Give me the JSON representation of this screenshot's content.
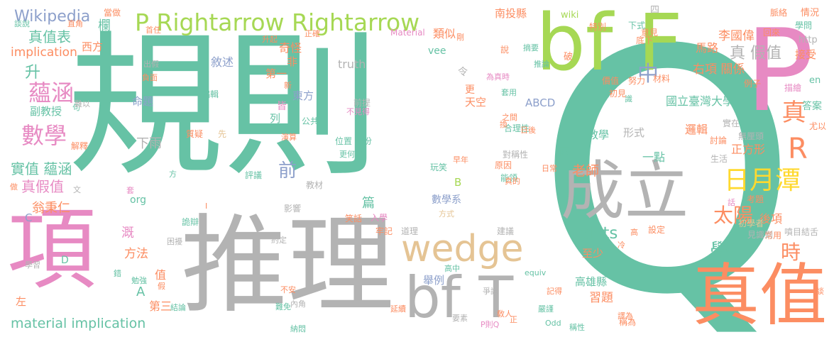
{
  "palette": {
    "teal": "#66c2a5",
    "orange": "#fc8d62",
    "blue": "#8da0cb",
    "pink": "#e78ac3",
    "lime": "#a6d854",
    "yellow": "#ffd92f",
    "tan": "#e5c494",
    "gray": "#b3b3b3"
  },
  "words": [
    {
      "text": "規則"
    },
    {
      "text": "Q"
    },
    {
      "text": "推理"
    },
    {
      "text": "bf F"
    },
    {
      "text": "P"
    },
    {
      "text": "項"
    },
    {
      "text": "真值"
    },
    {
      "text": "成立"
    },
    {
      "text": "bf T"
    },
    {
      "text": "P Rightarrow Rightarrow"
    },
    {
      "text": "wedge"
    },
    {
      "text": "Wikipedia"
    },
    {
      "text": "真值表"
    },
    {
      "text": "implication"
    },
    {
      "text": "蘊涵"
    },
    {
      "text": "數學"
    },
    {
      "text": "實值 蘊涵"
    },
    {
      "text": "真假值"
    },
    {
      "text": "翁秉仁"
    },
    {
      "text": "material implication"
    },
    {
      "text": "日月潭"
    },
    {
      "text": "太陽"
    },
    {
      "text": "學生"
    },
    {
      "text": "中"
    },
    {
      "text": "真"
    },
    {
      "text": "R"
    },
    {
      "text": "時"
    },
    {
      "text": "前"
    },
    {
      "text": "cdots"
    },
    {
      "text": "老師"
    },
    {
      "text": "國立臺灣大學"
    },
    {
      "text": "右項 關係"
    },
    {
      "text": "李國偉"
    },
    {
      "text": "馬路"
    },
    {
      "text": "真 假值"
    },
    {
      "text": "敘述"
    },
    {
      "text": "truth"
    },
    {
      "text": "東方"
    },
    {
      "text": "第一"
    },
    {
      "text": "命題"
    },
    {
      "text": "形式"
    },
    {
      "text": "教學"
    },
    {
      "text": "正方形"
    },
    {
      "text": "邏輯"
    },
    {
      "text": "習題"
    },
    {
      "text": "高雄縣"
    },
    {
      "text": "至少"
    },
    {
      "text": "方法"
    },
    {
      "text": "副教授"
    },
    {
      "text": "升"
    },
    {
      "text": "ABCD"
    },
    {
      "text": "數學系"
    },
    {
      "text": "後項"
    },
    {
      "text": "答案"
    },
    {
      "text": "接受"
    },
    {
      "text": "情況"
    },
    {
      "text": "http"
    },
    {
      "text": "一點"
    },
    {
      "text": "兩"
    },
    {
      "text": "類似"
    },
    {
      "text": "vee"
    },
    {
      "text": "西方"
    },
    {
      "text": "南投縣"
    },
    {
      "text": "下雨"
    },
    {
      "text": "天空"
    },
    {
      "text": "第三"
    },
    {
      "text": "舉例"
    },
    {
      "text": "值"
    },
    {
      "text": "篇"
    },
    {
      "text": "溉"
    },
    {
      "text": "A"
    },
    {
      "text": "C"
    },
    {
      "text": "D"
    },
    {
      "text": "B"
    },
    {
      "text": "org"
    },
    {
      "text": "en"
    },
    {
      "text": "奇怪"
    },
    {
      "text": "令"
    },
    {
      "text": "更"
    },
    {
      "text": "列"
    },
    {
      "text": "皆"
    },
    {
      "text": "非"
    },
    {
      "text": "四"
    },
    {
      "text": "左"
    },
    {
      "text": "欄"
    },
    {
      "text": "wiki"
    },
    {
      "text": "Material"
    },
    {
      "text": "前提"
    },
    {
      "text": "不見得"
    },
    {
      "text": "位置 部份"
    },
    {
      "text": "更何況"
    },
    {
      "text": "演算"
    },
    {
      "text": "質疑"
    },
    {
      "text": "先"
    },
    {
      "text": "編輯"
    },
    {
      "text": "公共"
    },
    {
      "text": "生活"
    },
    {
      "text": "實在"
    },
    {
      "text": "討論"
    },
    {
      "text": "常用"
    },
    {
      "text": "噴目結舌"
    },
    {
      "text": "見識到"
    },
    {
      "text": "設定"
    },
    {
      "text": "初學者"
    },
    {
      "text": "考題"
    },
    {
      "text": "無厘頭"
    },
    {
      "text": "描繪"
    },
    {
      "text": "尤以"
    },
    {
      "text": "脈絡"
    },
    {
      "text": "學問"
    },
    {
      "text": "回來"
    },
    {
      "text": "例子"
    },
    {
      "text": "意見"
    },
    {
      "text": "材料"
    },
    {
      "text": "識"
    },
    {
      "text": "努力"
    },
    {
      "text": "初見"
    },
    {
      "text": "價值"
    },
    {
      "text": "下式"
    },
    {
      "text": "底下"
    },
    {
      "text": "特別"
    },
    {
      "text": "摘要"
    },
    {
      "text": "推論"
    },
    {
      "text": "為真時"
    },
    {
      "text": "套用"
    },
    {
      "text": "之間"
    },
    {
      "text": "合理性"
    },
    {
      "text": "換"
    },
    {
      "text": "日後"
    },
    {
      "text": "對稱性"
    },
    {
      "text": "原因"
    },
    {
      "text": "能領"
    },
    {
      "text": "早年"
    },
    {
      "text": "日常"
    },
    {
      "text": "玩笑"
    },
    {
      "text": "真的"
    },
    {
      "text": "入學"
    },
    {
      "text": "笑話"
    },
    {
      "text": "方式"
    },
    {
      "text": "牢記"
    },
    {
      "text": "道理"
    },
    {
      "text": "建議"
    },
    {
      "text": "約定"
    },
    {
      "text": "困擾"
    },
    {
      "text": "詭辯"
    },
    {
      "text": "影響"
    },
    {
      "text": "教材"
    },
    {
      "text": "評議"
    },
    {
      "text": "解釋"
    },
    {
      "text": "句"
    },
    {
      "text": "難以"
    },
    {
      "text": "出假"
    },
    {
      "text": "負面"
    },
    {
      "text": "直角"
    },
    {
      "text": "當做"
    },
    {
      "text": "談說"
    },
    {
      "text": "升起"
    },
    {
      "text": "正確"
    },
    {
      "text": "新"
    },
    {
      "text": "高中"
    },
    {
      "text": "equiv"
    },
    {
      "text": "爭論"
    },
    {
      "text": "記得"
    },
    {
      "text": "嚴謹"
    },
    {
      "text": "敎人"
    },
    {
      "text": "稱為"
    },
    {
      "text": "稱性"
    },
    {
      "text": "Odd"
    },
    {
      "text": "要素"
    },
    {
      "text": "P則Q"
    },
    {
      "text": "延續"
    },
    {
      "text": "納悶"
    },
    {
      "text": "難免"
    },
    {
      "text": "內角"
    },
    {
      "text": "不安"
    },
    {
      "text": "結論"
    },
    {
      "text": "勉強"
    },
    {
      "text": "學習"
    },
    {
      "text": "錯"
    },
    {
      "text": "假"
    },
    {
      "text": "套"
    },
    {
      "text": "做"
    },
    {
      "text": "文"
    },
    {
      "text": "方"
    },
    {
      "text": "I"
    },
    {
      "text": "話"
    },
    {
      "text": "談"
    },
    {
      "text": "譯為"
    },
    {
      "text": "破"
    },
    {
      "text": "剛"
    },
    {
      "text": "說"
    },
    {
      "text": "冷"
    },
    {
      "text": "高"
    },
    {
      "text": "正"
    },
    {
      "text": "首任"
    }
  ]
}
